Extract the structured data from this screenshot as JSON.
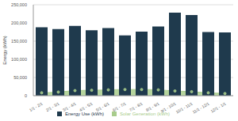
{
  "chart_data": {
    "type": "bar",
    "y_label": "Energy (kWh)",
    "categories": [
      "1/1 - 2/1",
      "2/1 - 3/1",
      "3/1 - 4/1",
      "4/1 - 5/1",
      "5/1 - 6/1",
      "6/1 - 7/1",
      "7/1 - 8/1",
      "8/1 - 9/1",
      "9/1 - 10/1",
      "10/1 - 11/1",
      "11/1 - 12/1",
      "12/1 - 1/1"
    ],
    "series": [
      {
        "name": "Energy Use (kWh)",
        "type": "bar",
        "color": "#1f3a4d",
        "values": [
          188000,
          183000,
          192000,
          180000,
          186000,
          166000,
          176000,
          190000,
          228000,
          222000,
          175000,
          174000
        ]
      },
      {
        "name": "Solar Generation (kWh)",
        "type": "area",
        "marker": "circle",
        "color": "#a8cc8c",
        "values": [
          8000,
          10000,
          14000,
          15000,
          16000,
          17000,
          17000,
          16000,
          13000,
          11000,
          8000,
          6000
        ]
      }
    ],
    "ylim": [
      0,
      250000
    ],
    "yticks": [
      0,
      {
        "value": 50000,
        "label": "50,000"
      },
      {
        "value": 100000,
        "label": "100,000"
      },
      {
        "value": 150000,
        "label": "150,000"
      },
      {
        "value": 200000,
        "label": "200,000"
      },
      {
        "value": 250000,
        "label": "250,000"
      }
    ],
    "grid": true,
    "legend": "bottom"
  }
}
